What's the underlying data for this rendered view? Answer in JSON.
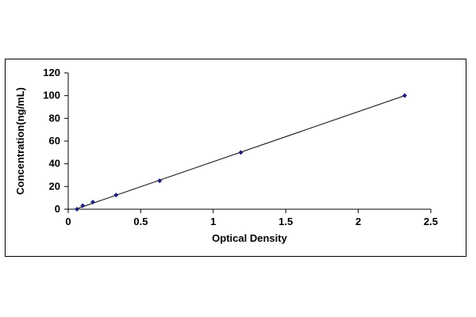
{
  "chart_data": {
    "type": "scatter",
    "title": "",
    "xlabel": "Optical Density",
    "ylabel": "Concentration(ng/mL)",
    "xlim": [
      0,
      2.5
    ],
    "ylim": [
      0,
      120
    ],
    "x_ticks": [
      0,
      0.5,
      1,
      1.5,
      2,
      2.5
    ],
    "x_tick_labels": [
      "0",
      "0.5",
      "1",
      "1.5",
      "2",
      "2.5"
    ],
    "y_ticks": [
      0,
      20,
      40,
      60,
      80,
      100,
      120
    ],
    "y_tick_labels": [
      "0",
      "20",
      "40",
      "60",
      "80",
      "100",
      "120"
    ],
    "grid": false,
    "legend": "none",
    "series": [
      {
        "x": [
          0.06,
          0.1,
          0.17,
          0.33,
          0.63,
          1.19,
          2.32
        ],
        "y": [
          0,
          3.12,
          6.25,
          12.5,
          25,
          50,
          100
        ],
        "marker_color": "#1f1f7a",
        "trendline": {
          "x": [
            0.05,
            2.32
          ],
          "y": [
            0,
            100
          ],
          "color": "#000000"
        }
      }
    ]
  }
}
